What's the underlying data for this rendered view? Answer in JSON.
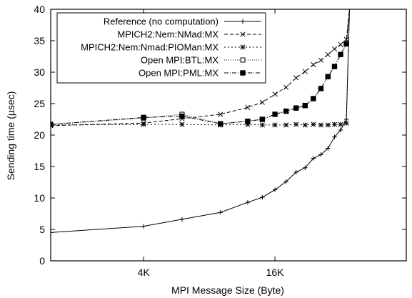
{
  "chart_data": {
    "type": "line",
    "title": "",
    "xlabel": "MPI Message Size (Byte)",
    "ylabel": "Sending time (µsec)",
    "xscale": "log2",
    "xlim": [
      1536,
      65536
    ],
    "ylim": [
      0,
      40
    ],
    "xticks": [
      {
        "value": 4096,
        "label": "4K"
      },
      {
        "value": 16384,
        "label": "16K"
      }
    ],
    "yticks": [
      0,
      5,
      10,
      15,
      20,
      25,
      30,
      35,
      40
    ],
    "grid": false,
    "legend": "top-left",
    "series": [
      {
        "name": "Reference (no computation)",
        "marker": "plus",
        "dash": "",
        "points": [
          [
            1536,
            4.5
          ],
          [
            4096,
            5.5
          ],
          [
            6144,
            6.6
          ],
          [
            9216,
            7.7
          ],
          [
            12288,
            9.3
          ],
          [
            14336,
            10.1
          ],
          [
            16384,
            11.3
          ],
          [
            18432,
            12.6
          ],
          [
            20480,
            14.1
          ],
          [
            22528,
            14.8
          ],
          [
            24576,
            16.3
          ],
          [
            26624,
            16.9
          ],
          [
            28672,
            17.9
          ],
          [
            30720,
            19.7
          ],
          [
            32768,
            20.8
          ],
          [
            34816,
            22.5
          ],
          [
            36000,
            40.0
          ]
        ]
      },
      {
        "name": "MPICH2:Nem:NMad:MX",
        "marker": "cross",
        "dash": "5,3",
        "points": [
          [
            1536,
            21.5
          ],
          [
            4096,
            21.9
          ],
          [
            6144,
            22.6
          ],
          [
            9216,
            23.3
          ],
          [
            12288,
            24.4
          ],
          [
            14336,
            25.2
          ],
          [
            16384,
            26.5
          ],
          [
            18432,
            27.6
          ],
          [
            20480,
            29.1
          ],
          [
            22528,
            30.1
          ],
          [
            24576,
            31.2
          ],
          [
            26624,
            31.9
          ],
          [
            28672,
            32.8
          ],
          [
            30720,
            33.7
          ],
          [
            32768,
            34.4
          ],
          [
            34816,
            35.2
          ],
          [
            36000,
            40.0
          ]
        ]
      },
      {
        "name": "MPICH2:Nem:Nmad:PIOMan:MX",
        "marker": "star",
        "dash": "2,3",
        "points": [
          [
            1536,
            21.6
          ],
          [
            4096,
            21.7
          ],
          [
            6144,
            21.7
          ],
          [
            9216,
            21.6
          ],
          [
            12288,
            21.7
          ],
          [
            14336,
            21.6
          ],
          [
            16384,
            21.6
          ],
          [
            18432,
            21.6
          ],
          [
            20480,
            21.7
          ],
          [
            22528,
            21.6
          ],
          [
            24576,
            21.7
          ],
          [
            26624,
            21.6
          ],
          [
            28672,
            21.6
          ],
          [
            30720,
            21.7
          ],
          [
            32768,
            21.7
          ],
          [
            34816,
            21.9
          ],
          [
            36000,
            40.0
          ]
        ]
      },
      {
        "name": "Open MPI:BTL:MX",
        "marker": "square-open",
        "dash": "1,2",
        "points": [
          [
            1536,
            21.7
          ],
          [
            4096,
            22.7
          ],
          [
            6144,
            23.3
          ],
          [
            9216,
            21.8
          ],
          [
            12288,
            22.2
          ],
          [
            14336,
            22.5
          ],
          [
            16384,
            23.3
          ],
          [
            18432,
            23.8
          ],
          [
            20480,
            24.3
          ],
          [
            22528,
            24.7
          ],
          [
            24576,
            25.8
          ],
          [
            26624,
            27.4
          ],
          [
            28672,
            29.3
          ],
          [
            30720,
            30.9
          ],
          [
            32768,
            32.8
          ],
          [
            34816,
            34.5
          ],
          [
            36000,
            40.0
          ]
        ]
      },
      {
        "name": "Open MPI:PML:MX",
        "marker": "square-filled",
        "dash": "6,2,1,2",
        "points": [
          [
            1536,
            21.7
          ],
          [
            4096,
            22.8
          ],
          [
            6144,
            23.0
          ],
          [
            9216,
            21.8
          ],
          [
            12288,
            22.2
          ],
          [
            14336,
            22.5
          ],
          [
            16384,
            23.3
          ],
          [
            18432,
            23.8
          ],
          [
            20480,
            24.3
          ],
          [
            22528,
            24.7
          ],
          [
            24576,
            25.8
          ],
          [
            26624,
            27.4
          ],
          [
            28672,
            29.3
          ],
          [
            30720,
            30.9
          ],
          [
            32768,
            32.8
          ],
          [
            34816,
            34.5
          ],
          [
            36000,
            40.0
          ]
        ]
      }
    ]
  }
}
